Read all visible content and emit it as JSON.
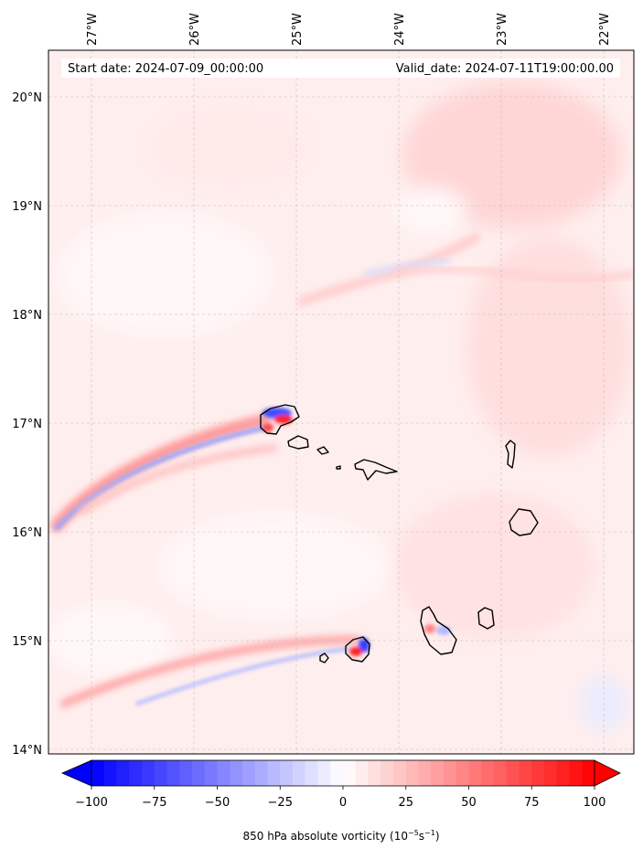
{
  "map": {
    "start_label": "Start date: 2024-07-09_00:00:00",
    "valid_label": "Valid_date: 2024-07-11T19:00:00.00",
    "lon_ticks": [
      "27°W",
      "26°W",
      "25°W",
      "24°W",
      "23°W",
      "22°W"
    ],
    "lat_ticks": [
      "20°N",
      "19°N",
      "18°N",
      "17°N",
      "16°N",
      "15°N",
      "14°N"
    ],
    "extent": {
      "lon_min": -27.4,
      "lon_max": -21.7,
      "lat_min": 13.95,
      "lat_max": 20.42
    },
    "field": "850 hPa absolute vorticity",
    "colormap": "bwr"
  },
  "colorbar": {
    "ticks": [
      "−100",
      "−75",
      "−50",
      "−25",
      "0",
      "25",
      "50",
      "75",
      "100"
    ],
    "label_prefix": "850 hPa absolute vorticity (10",
    "label_exp1": "−5",
    "label_mid": "s",
    "label_exp2": "−1",
    "label_suffix": ")",
    "range": [
      -100,
      100
    ],
    "extend": "both",
    "colors": {
      "min": "#0000ff",
      "mid": "#ffffff",
      "max": "#ff0000"
    }
  }
}
